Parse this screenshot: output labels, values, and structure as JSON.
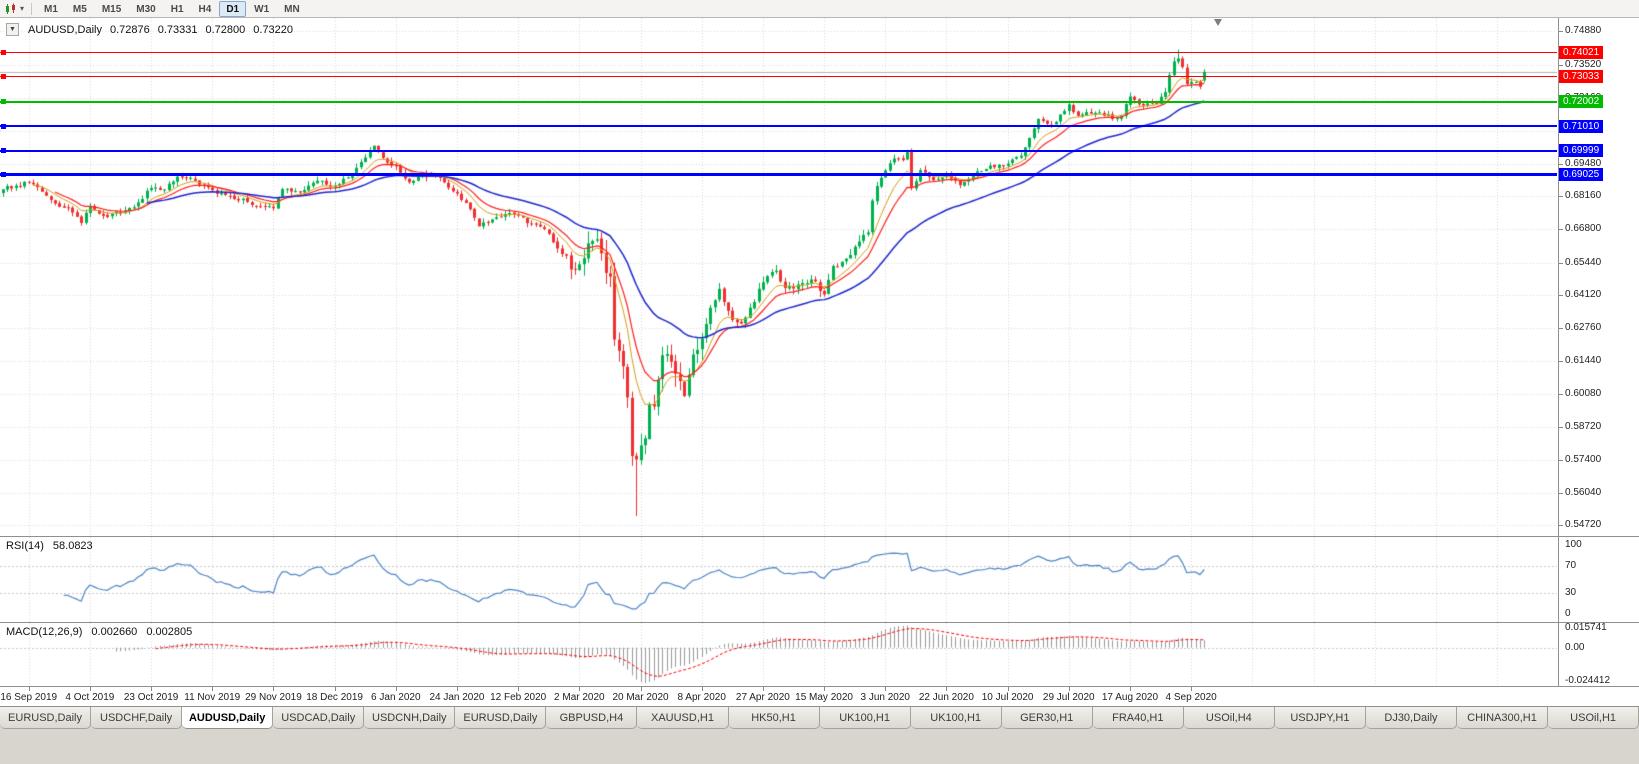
{
  "toolbar": {
    "timeframes": [
      {
        "label": "M1",
        "active": false
      },
      {
        "label": "M5",
        "active": false
      },
      {
        "label": "M15",
        "active": false
      },
      {
        "label": "M30",
        "active": false
      },
      {
        "label": "H1",
        "active": false
      },
      {
        "label": "H4",
        "active": false
      },
      {
        "label": "D1",
        "active": true
      },
      {
        "label": "W1",
        "active": false
      },
      {
        "label": "MN",
        "active": false
      }
    ]
  },
  "chart": {
    "title": "AUDUSD,Daily",
    "ohlc": {
      "open": "0.72876",
      "high": "0.73331",
      "low": "0.72800",
      "close": "0.73220"
    },
    "current_price": 0.7322,
    "y_ticks": [
      "0.74880",
      "0.73520",
      "0.72160",
      "0.70800",
      "0.69480",
      "0.68160",
      "0.66800",
      "0.65440",
      "0.64120",
      "0.62760",
      "0.61440",
      "0.60080",
      "0.58720",
      "0.57400",
      "0.56040",
      "0.54720"
    ],
    "hlines": [
      {
        "price": "0.74021",
        "value": 0.74021,
        "color": "#FF0000",
        "width": 1
      },
      {
        "price": "0.73033",
        "value": 0.73033,
        "color": "#FF0000",
        "width": 1
      },
      {
        "price": "0.72002",
        "value": 0.72002,
        "color": "#00BB00",
        "width": 2
      },
      {
        "price": "0.71010",
        "value": 0.7101,
        "color": "#0000FF",
        "width": 2
      },
      {
        "price": "0.69999",
        "value": 0.69999,
        "color": "#0000FF",
        "width": 2
      },
      {
        "price": "0.69025",
        "value": 0.69025,
        "color": "#0000FF",
        "width": 3
      }
    ],
    "colors": {
      "bull": "#00B14F",
      "bear": "#F03030",
      "ma_fast": "#D4A017",
      "ma_mid": "#FF2020",
      "ma_slow": "#2028CC",
      "grid": "#DBDBDB",
      "current_price_line": "#B5B5B5"
    }
  },
  "rsi": {
    "name": "RSI(14)",
    "value": "58.0823",
    "scale_labels": [
      "100",
      "70",
      "30",
      "0"
    ],
    "scale_values": [
      100,
      70,
      30,
      0
    ],
    "levels": [
      70,
      30
    ],
    "color": "#4F86C6"
  },
  "macd": {
    "name": "MACD(12,26,9)",
    "value_main": "0.002660",
    "value_signal": "0.002805",
    "scale_labels": [
      "0.015741",
      "0.00",
      "-0.024412"
    ],
    "scale_values": [
      0.015741,
      0,
      -0.024412
    ],
    "histogram_color": "#9A9A9A",
    "signal_color": "#FF0000"
  },
  "chart_data": {
    "type": "candlestick",
    "symbol": "AUDUSD",
    "timeframe": "Daily",
    "last_ohlc": {
      "open": 0.72876,
      "high": 0.73331,
      "low": 0.728,
      "close": 0.7322
    },
    "count": 276,
    "first_label_index": 6,
    "label_step": 14,
    "x_labels": [
      "16 Sep 2019",
      "4 Oct 2019",
      "23 Oct 2019",
      "11 Nov 2019",
      "29 Nov 2019",
      "18 Dec 2019",
      "6 Jan 2020",
      "24 Jan 2020",
      "12 Feb 2020",
      "2 Mar 2020",
      "20 Mar 2020",
      "8 Apr 2020",
      "27 Apr 2020",
      "15 May 2020",
      "3 Jun 2020",
      "22 Jun 2020",
      "10 Jul 2020",
      "29 Jul 2020",
      "17 Aug 2020",
      "4 Sep 2020"
    ],
    "y_axis_top_price": 0.7542,
    "price_per_pixel": 0.000408,
    "horizontal_levels": [
      0.74021,
      0.73033,
      0.72002,
      0.7101,
      0.69999,
      0.69025
    ],
    "anchors": [
      [
        0,
        0.6843
      ],
      [
        3,
        0.6858
      ],
      [
        6,
        0.687
      ],
      [
        8,
        0.6852
      ],
      [
        12,
        0.6785
      ],
      [
        16,
        0.6748
      ],
      [
        18,
        0.6706
      ],
      [
        20,
        0.6772
      ],
      [
        24,
        0.673
      ],
      [
        28,
        0.6756
      ],
      [
        31,
        0.679
      ],
      [
        34,
        0.6848
      ],
      [
        37,
        0.6842
      ],
      [
        40,
        0.6895
      ],
      [
        43,
        0.689
      ],
      [
        48,
        0.684
      ],
      [
        52,
        0.6815
      ],
      [
        56,
        0.6792
      ],
      [
        60,
        0.6772
      ],
      [
        62,
        0.6766
      ],
      [
        64,
        0.6844
      ],
      [
        68,
        0.683
      ],
      [
        72,
        0.6878
      ],
      [
        76,
        0.6856
      ],
      [
        80,
        0.6904
      ],
      [
        84,
        0.7
      ],
      [
        85,
        0.7021
      ],
      [
        88,
        0.6952
      ],
      [
        90,
        0.6938
      ],
      [
        93,
        0.6872
      ],
      [
        96,
        0.6904
      ],
      [
        100,
        0.689
      ],
      [
        104,
        0.6826
      ],
      [
        107,
        0.6762
      ],
      [
        109,
        0.6692
      ],
      [
        112,
        0.672
      ],
      [
        115,
        0.6742
      ],
      [
        118,
        0.6736
      ],
      [
        121,
        0.6702
      ],
      [
        124,
        0.6682
      ],
      [
        127,
        0.6602
      ],
      [
        129,
        0.6572
      ],
      [
        130,
        0.6516
      ],
      [
        132,
        0.6537
      ],
      [
        134,
        0.6623
      ],
      [
        136,
        0.6639
      ],
      [
        137,
        0.6582
      ],
      [
        138,
        0.6502
      ],
      [
        139,
        0.6487
      ],
      [
        140,
        0.623
      ],
      [
        141,
        0.6184
      ],
      [
        142,
        0.6121
      ],
      [
        143,
        0.5994
      ],
      [
        144,
        0.5755
      ],
      [
        145,
        0.5741
      ],
      [
        146,
        0.5798
      ],
      [
        147,
        0.5827
      ],
      [
        148,
        0.5966
      ],
      [
        149,
        0.5957
      ],
      [
        150,
        0.6066
      ],
      [
        151,
        0.6166
      ],
      [
        152,
        0.6171
      ],
      [
        153,
        0.614
      ],
      [
        154,
        0.6091
      ],
      [
        155,
        0.6061
      ],
      [
        156,
        0.5999
      ],
      [
        157,
        0.6087
      ],
      [
        158,
        0.6169
      ],
      [
        160,
        0.6234
      ],
      [
        162,
        0.636
      ],
      [
        164,
        0.6437
      ],
      [
        167,
        0.631
      ],
      [
        169,
        0.6295
      ],
      [
        171,
        0.636
      ],
      [
        174,
        0.6464
      ],
      [
        177,
        0.6511
      ],
      [
        179,
        0.644
      ],
      [
        182,
        0.6455
      ],
      [
        185,
        0.6475
      ],
      [
        188,
        0.6414
      ],
      [
        190,
        0.653
      ],
      [
        193,
        0.656
      ],
      [
        196,
        0.663
      ],
      [
        198,
        0.6667
      ],
      [
        199,
        0.6797
      ],
      [
        201,
        0.689
      ],
      [
        202,
        0.692
      ],
      [
        204,
        0.6969
      ],
      [
        206,
        0.6962
      ],
      [
        207,
        0.7002
      ],
      [
        208,
        0.6848
      ],
      [
        210,
        0.6921
      ],
      [
        213,
        0.688
      ],
      [
        216,
        0.6907
      ],
      [
        219,
        0.686
      ],
      [
        222,
        0.6903
      ],
      [
        226,
        0.694
      ],
      [
        230,
        0.6948
      ],
      [
        233,
        0.698
      ],
      [
        237,
        0.713
      ],
      [
        240,
        0.7105
      ],
      [
        244,
        0.719
      ],
      [
        246,
        0.7143
      ],
      [
        248,
        0.7158
      ],
      [
        251,
        0.7157
      ],
      [
        254,
        0.713
      ],
      [
        256,
        0.7145
      ],
      [
        258,
        0.7222
      ],
      [
        261,
        0.7185
      ],
      [
        264,
        0.7195
      ],
      [
        266,
        0.724
      ],
      [
        268,
        0.7365
      ],
      [
        269,
        0.7377
      ],
      [
        270,
        0.7342
      ],
      [
        271,
        0.7272
      ],
      [
        272,
        0.7281
      ],
      [
        273,
        0.7281
      ],
      [
        274,
        0.7262
      ],
      [
        275,
        0.7322
      ]
    ],
    "key_candles": {
      "145": {
        "low": 0.551
      },
      "269": {
        "high": 0.7413
      },
      "275": {
        "open": 0.72876,
        "high": 0.73331,
        "low": 0.728,
        "close": 0.7322
      }
    },
    "indicators": {
      "moving_averages": [
        {
          "period": 8,
          "color": "#D4A017"
        },
        {
          "period": 13,
          "color": "#FF2020"
        },
        {
          "period": 34,
          "color": "#2028CC"
        }
      ],
      "rsi": {
        "period": 14,
        "last": 58.0823
      },
      "macd": {
        "fast": 12,
        "slow": 26,
        "signal": 9,
        "last_main": 0.00266,
        "last_signal": 0.002805,
        "scale_max": 0.015741,
        "scale_min": -0.024412
      }
    }
  },
  "tabs": {
    "active_index": 2,
    "items": [
      "EURUSD,Daily",
      "USDCHF,Daily",
      "AUDUSD,Daily",
      "USDCAD,Daily",
      "USDCNH,Daily",
      "EURUSD,Daily",
      "GBPUSD,H4",
      "XAUUSD,H1",
      "HK50,H1",
      "UK100,H1",
      "UK100,H1",
      "GER30,H1",
      "FRA40,H1",
      "USOil,H4",
      "USDJPY,H1",
      "DJ30,Daily",
      "CHINA300,H1",
      "USOil,H1"
    ]
  }
}
